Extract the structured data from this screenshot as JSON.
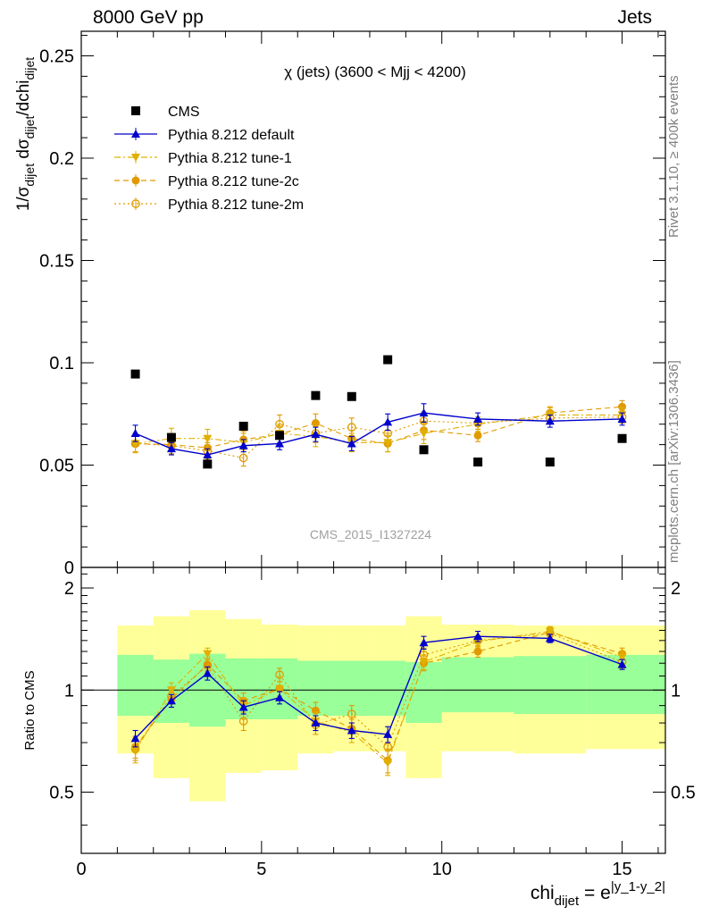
{
  "header": {
    "left": "8000 GeV pp",
    "right": "Jets"
  },
  "side": {
    "rivet": "Rivet 3.1.10, ≥ 400k events",
    "mcplots": "mcplots.cern.ch [arXiv:1306.3436]"
  },
  "chart_data": [
    {
      "type": "scatter",
      "panel": "main",
      "title": "χ (jets) (3600 < Mjj < 4200)",
      "watermark": "CMS_2015_I1327224",
      "ylabel": "1/σ_dijet dσ_dijet/dchi_dijet",
      "xlim": [
        0,
        16.2
      ],
      "ylim": [
        0,
        0.262
      ],
      "yticks": [
        "0.05",
        "0.1",
        "0.15",
        "0.2",
        "0.25"
      ],
      "legend_position": "top-left",
      "x": [
        1.5,
        2.5,
        3.5,
        4.5,
        5.5,
        6.5,
        7.5,
        8.5,
        9.5,
        11,
        13,
        15
      ],
      "series": [
        {
          "name": "CMS",
          "color": "#000000",
          "marker": "square",
          "values": [
            0.0945,
            0.0635,
            0.0505,
            0.069,
            0.0645,
            0.084,
            0.0835,
            0.1015,
            0.0575,
            0.0515,
            0.0515,
            0.063
          ]
        },
        {
          "name": "Pythia 8.212 default",
          "color": "#0000cc",
          "marker": "triangle-up",
          "line": "solid",
          "values": [
            0.0655,
            0.058,
            0.055,
            0.0595,
            0.0605,
            0.065,
            0.0605,
            0.071,
            0.0755,
            0.0725,
            0.0715,
            0.0725
          ],
          "errors": [
            0.004,
            0.003,
            0.003,
            0.003,
            0.003,
            0.0035,
            0.0035,
            0.004,
            0.0045,
            0.003,
            0.003,
            0.003
          ]
        },
        {
          "name": "Pythia 8.212 tune-1",
          "color": "#e0b000",
          "marker": "triangle-down",
          "line": "dashdot",
          "values": [
            0.0605,
            0.063,
            0.063,
            0.061,
            0.0655,
            0.064,
            0.061,
            0.061,
            0.0655,
            0.07,
            0.0745,
            0.0745
          ],
          "errors": [
            0.0045,
            0.005,
            0.0045,
            0.0045,
            0.0045,
            0.005,
            0.0045,
            0.0045,
            0.005,
            0.0035,
            0.0035,
            0.0035
          ]
        },
        {
          "name": "Pythia 8.212 tune-2c",
          "color": "#e09a00",
          "marker": "circle",
          "line": "dashed",
          "values": [
            0.0605,
            0.06,
            0.0585,
            0.0625,
            0.065,
            0.0705,
            0.063,
            0.0605,
            0.067,
            0.0645,
            0.0755,
            0.0785
          ],
          "errors": [
            0.004,
            0.0045,
            0.004,
            0.004,
            0.004,
            0.0045,
            0.004,
            0.004,
            0.0045,
            0.003,
            0.003,
            0.003
          ]
        },
        {
          "name": "Pythia 8.212 tune-2m",
          "color": "#e09a00",
          "marker": "circle-open",
          "line": "dotted",
          "values": [
            0.0605,
            0.0595,
            0.057,
            0.0535,
            0.07,
            0.0655,
            0.0685,
            0.0655,
            0.0715,
            0.0705,
            0.073,
            0.0735
          ],
          "errors": [
            0.004,
            0.004,
            0.004,
            0.004,
            0.0045,
            0.0045,
            0.0045,
            0.0045,
            0.0045,
            0.003,
            0.003,
            0.003
          ]
        }
      ]
    },
    {
      "type": "scatter",
      "panel": "ratio",
      "ylabel": "Ratio to CMS",
      "xlabel": "chi_dijet = e^|y_1-y_2|",
      "xlim": [
        0,
        16.2
      ],
      "ylim": [
        0.33,
        2.3
      ],
      "yticks": [
        "0.5",
        "1",
        "2"
      ],
      "xticks": [
        "0",
        "5",
        "10",
        "15"
      ],
      "bands": {
        "edges": [
          1,
          2,
          3,
          4,
          5,
          6,
          7,
          8,
          9,
          10,
          12,
          14,
          16.2
        ],
        "inner": [
          [
            0.84,
            1.27
          ],
          [
            0.8,
            1.23
          ],
          [
            0.78,
            1.28
          ],
          [
            0.82,
            1.24
          ],
          [
            0.82,
            1.24
          ],
          [
            0.84,
            1.22
          ],
          [
            0.84,
            1.22
          ],
          [
            0.84,
            1.22
          ],
          [
            0.8,
            1.21
          ],
          [
            0.86,
            1.25
          ],
          [
            0.85,
            1.26
          ],
          [
            0.85,
            1.27
          ]
        ],
        "outer": [
          [
            0.65,
            1.55
          ],
          [
            0.55,
            1.65
          ],
          [
            0.47,
            1.72
          ],
          [
            0.57,
            1.62
          ],
          [
            0.58,
            1.56
          ],
          [
            0.65,
            1.55
          ],
          [
            0.66,
            1.55
          ],
          [
            0.66,
            1.55
          ],
          [
            0.55,
            1.65
          ],
          [
            0.66,
            1.56
          ],
          [
            0.65,
            1.55
          ],
          [
            0.67,
            1.55
          ]
        ]
      },
      "x": [
        1.5,
        2.5,
        3.5,
        4.5,
        5.5,
        6.5,
        7.5,
        8.5,
        9.5,
        11,
        13,
        15
      ],
      "series": [
        {
          "name": "Pythia 8.212 default",
          "color": "#0000cc",
          "marker": "triangle-up",
          "line": "solid",
          "values": [
            0.72,
            0.93,
            1.12,
            0.89,
            0.95,
            0.8,
            0.76,
            0.74,
            1.38,
            1.44,
            1.42,
            1.19
          ],
          "errors": [
            0.04,
            0.04,
            0.05,
            0.04,
            0.04,
            0.04,
            0.04,
            0.04,
            0.06,
            0.05,
            0.04,
            0.04
          ]
        },
        {
          "name": "Pythia 8.212 tune-1",
          "color": "#e0b000",
          "marker": "triangle-down",
          "line": "dashdot",
          "values": [
            0.66,
            1.0,
            1.28,
            0.9,
            1.01,
            0.81,
            0.75,
            0.61,
            1.21,
            1.39,
            1.49,
            1.25
          ],
          "errors": [
            0.05,
            0.05,
            0.05,
            0.05,
            0.05,
            0.05,
            0.05,
            0.05,
            0.06,
            0.05,
            0.05,
            0.05
          ]
        },
        {
          "name": "Pythia 8.212 tune-2c",
          "color": "#e09a00",
          "marker": "circle",
          "line": "dashed",
          "values": [
            0.68,
            0.94,
            1.19,
            0.93,
            1.01,
            0.87,
            0.77,
            0.62,
            1.2,
            1.3,
            1.48,
            1.28
          ],
          "errors": [
            0.05,
            0.05,
            0.05,
            0.05,
            0.05,
            0.05,
            0.05,
            0.05,
            0.06,
            0.05,
            0.05,
            0.05
          ]
        },
        {
          "name": "Pythia 8.212 tune-2m",
          "color": "#e09a00",
          "marker": "circle-open",
          "line": "dotted",
          "values": [
            0.67,
            0.96,
            1.18,
            0.81,
            1.11,
            0.79,
            0.85,
            0.68,
            1.27,
            1.4,
            1.47,
            1.21
          ],
          "errors": [
            0.05,
            0.05,
            0.05,
            0.05,
            0.05,
            0.05,
            0.05,
            0.05,
            0.06,
            0.05,
            0.05,
            0.05
          ]
        }
      ]
    }
  ]
}
